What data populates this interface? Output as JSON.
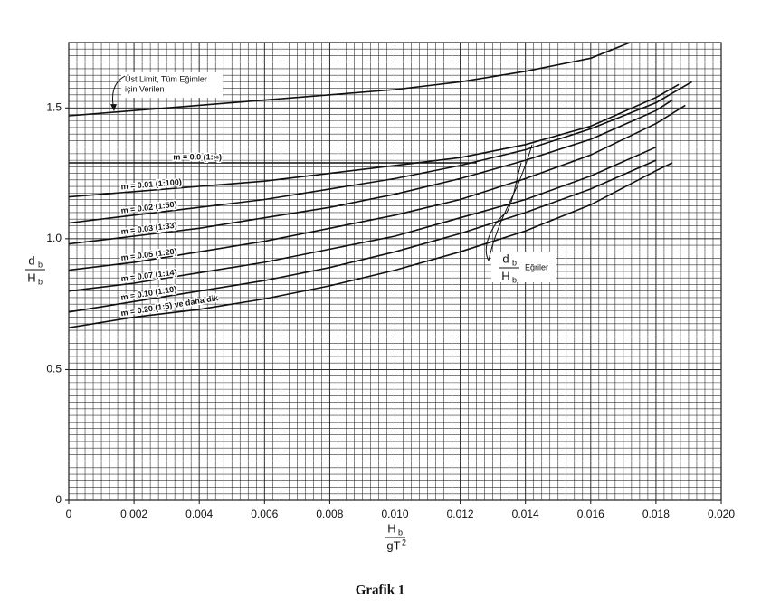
{
  "chart_data": {
    "type": "line",
    "ylabel": {
      "num": "d",
      "num_sub": "b",
      "den": "H",
      "den_sub": "b"
    },
    "xlabel": {
      "num": "H",
      "num_sub": "b",
      "den": "gT",
      "den_sup": "2"
    },
    "caption": "Grafik 1",
    "annotation": {
      "lines": [
        "Üst Limit, Tüm Eğimler",
        "için Verilen"
      ]
    },
    "curves_note": {
      "num": "d",
      "num_sub": "b",
      "den": "H",
      "den_sub": "b",
      "text": "Eğriler"
    },
    "xlim": [
      0,
      0.02
    ],
    "ylim": [
      0,
      1.75
    ],
    "xticks": [
      0,
      0.002,
      0.004,
      0.006,
      0.008,
      {
        "value": 0.01,
        "label": "0.010"
      },
      0.012,
      0.014,
      0.016,
      0.018,
      {
        "value": 0.02,
        "label": "0.020"
      }
    ],
    "yticks": [
      0,
      0.5,
      {
        "value": 1,
        "label": "1.0"
      },
      1.5
    ],
    "grid": true,
    "series": [
      {
        "color": "#111111",
        "x": [
          0,
          0.002,
          0.004,
          0.006,
          0.008,
          0.01,
          0.012,
          0.014,
          0.016,
          0.0172
        ],
        "values": [
          1.47,
          1.49,
          1.51,
          1.53,
          1.55,
          1.57,
          1.6,
          1.64,
          1.69,
          1.75
        ]
      },
      {
        "name": "m = 0.0 (1:∞)",
        "color": "#111111",
        "x": [
          0,
          0.004,
          0.008,
          0.0125
        ],
        "values": [
          1.29,
          1.29,
          1.29,
          1.29
        ]
      },
      {
        "name": "m = 0.01 (1:100)",
        "color": "#111111",
        "x": [
          0,
          0.002,
          0.004,
          0.006,
          0.008,
          0.01,
          0.012,
          0.014,
          0.016,
          0.018,
          0.0187
        ],
        "values": [
          1.16,
          1.18,
          1.2,
          1.22,
          1.25,
          1.28,
          1.31,
          1.36,
          1.43,
          1.54,
          1.59
        ]
      },
      {
        "name": "m = 0.02 (1:50)",
        "color": "#111111",
        "x": [
          0,
          0.002,
          0.004,
          0.006,
          0.008,
          0.01,
          0.012,
          0.014,
          0.016,
          0.018,
          0.0191
        ],
        "values": [
          1.06,
          1.09,
          1.12,
          1.15,
          1.19,
          1.23,
          1.28,
          1.34,
          1.42,
          1.52,
          1.6
        ]
      },
      {
        "name": "m = 0.03 (1:33)",
        "color": "#111111",
        "x": [
          0,
          0.002,
          0.004,
          0.006,
          0.008,
          0.01,
          0.012,
          0.014,
          0.016,
          0.018,
          0.0185
        ],
        "values": [
          0.98,
          1.01,
          1.04,
          1.08,
          1.12,
          1.17,
          1.23,
          1.3,
          1.38,
          1.49,
          1.53
        ]
      },
      {
        "name": "m = 0.05 (1:20)",
        "color": "#111111",
        "x": [
          0,
          0.002,
          0.004,
          0.006,
          0.008,
          0.01,
          0.012,
          0.014,
          0.016,
          0.018,
          0.0189
        ],
        "values": [
          0.88,
          0.91,
          0.95,
          0.99,
          1.04,
          1.09,
          1.15,
          1.23,
          1.32,
          1.44,
          1.51
        ]
      },
      {
        "name": "m = 0.07 (1:14)",
        "color": "#111111",
        "x": [
          0,
          0.002,
          0.004,
          0.006,
          0.008,
          0.01,
          0.012,
          0.014,
          0.016,
          0.018
        ],
        "values": [
          0.8,
          0.83,
          0.87,
          0.91,
          0.96,
          1.01,
          1.08,
          1.15,
          1.24,
          1.35
        ]
      },
      {
        "name": "m = 0.10 (1:10)",
        "color": "#111111",
        "x": [
          0,
          0.002,
          0.004,
          0.006,
          0.008,
          0.01,
          0.012,
          0.014,
          0.016,
          0.018
        ],
        "values": [
          0.72,
          0.76,
          0.8,
          0.84,
          0.89,
          0.95,
          1.02,
          1.1,
          1.19,
          1.3
        ]
      },
      {
        "name": "m = 0.20 (1:5) ve daha dik",
        "color": "#111111",
        "x": [
          0,
          0.002,
          0.004,
          0.006,
          0.008,
          0.01,
          0.012,
          0.014,
          0.016,
          0.018,
          0.0185
        ],
        "values": [
          0.66,
          0.7,
          0.73,
          0.77,
          0.82,
          0.88,
          0.95,
          1.03,
          1.13,
          1.26,
          1.29
        ]
      }
    ]
  }
}
